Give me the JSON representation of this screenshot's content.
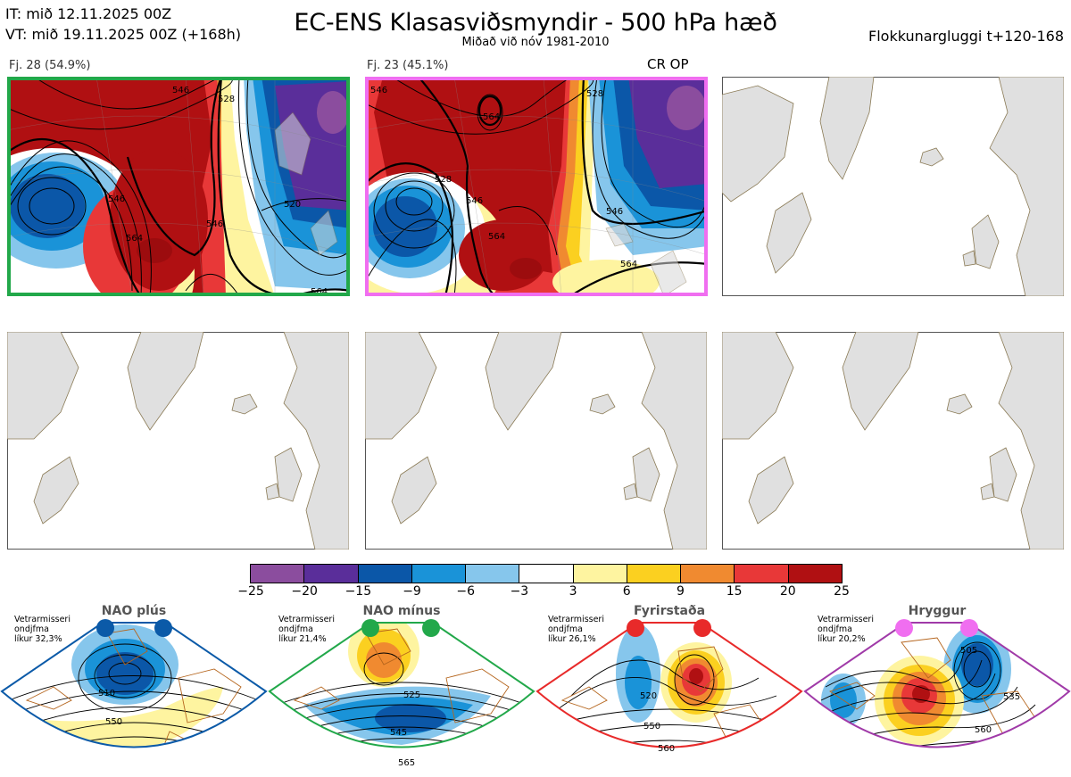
{
  "header": {
    "it": "IT: mið 12.11.2025 00Z",
    "vt": "VT: mið 19.11.2025 00Z  (+168h)",
    "title": "EC-ENS Klasasviðsmyndir - 500 hPa hæð",
    "subtitle": "Miðað við nóv 1981-2010",
    "window": "Flokkunargluggi t+120-168"
  },
  "panels": [
    {
      "label": "Fj. 28 (54.9%)",
      "border": "#22a84a",
      "op": ""
    },
    {
      "label": "Fj. 23 (45.1%)",
      "border": "#f06ef0",
      "op": "CR OP"
    }
  ],
  "contours_panel1": [
    "546",
    "528",
    "520",
    "546",
    "546",
    "564",
    "564"
  ],
  "contours_panel2": [
    "546",
    "528",
    "564",
    "528",
    "546",
    "546",
    "564",
    "546",
    "564"
  ],
  "colorbar": {
    "colors": [
      "#8b4d9e",
      "#5a2e9a",
      "#0b57a8",
      "#1a93d8",
      "#86c6ec",
      "#ffffff",
      "#fef4a0",
      "#fbd020",
      "#f08a30",
      "#e83838",
      "#b01012"
    ],
    "labels": [
      "−25",
      "−20",
      "−15",
      "−9",
      "−6",
      "−3",
      "3",
      "6",
      "9",
      "15",
      "20",
      "25"
    ]
  },
  "regimes": [
    {
      "name": "NAO plús",
      "note": [
        "Vetrarmisseri",
        "ondjfma",
        "líkur 32,3%"
      ],
      "color": "#0b5aa8",
      "contours": [
        "510",
        "550"
      ]
    },
    {
      "name": "NAO mínus",
      "note": [
        "Vetrarmisseri",
        "ondjfma",
        "líkur 21,4%"
      ],
      "color": "#22a84a",
      "contours": [
        "525",
        "545",
        "565"
      ]
    },
    {
      "name": "Fyrirstaða",
      "note": [
        "Vetrarmisseri",
        "ondjfma",
        "líkur 26,1%"
      ],
      "color": "#e82a2a",
      "contours": [
        "520",
        "550",
        "560"
      ]
    },
    {
      "name": "Hryggur",
      "note": [
        "Vetrarmisseri",
        "ondjfma",
        "líkur 20,2%"
      ],
      "color": "#a03aa8",
      "dot": "#f06ef0",
      "contours": [
        "505",
        "535",
        "560"
      ]
    }
  ]
}
